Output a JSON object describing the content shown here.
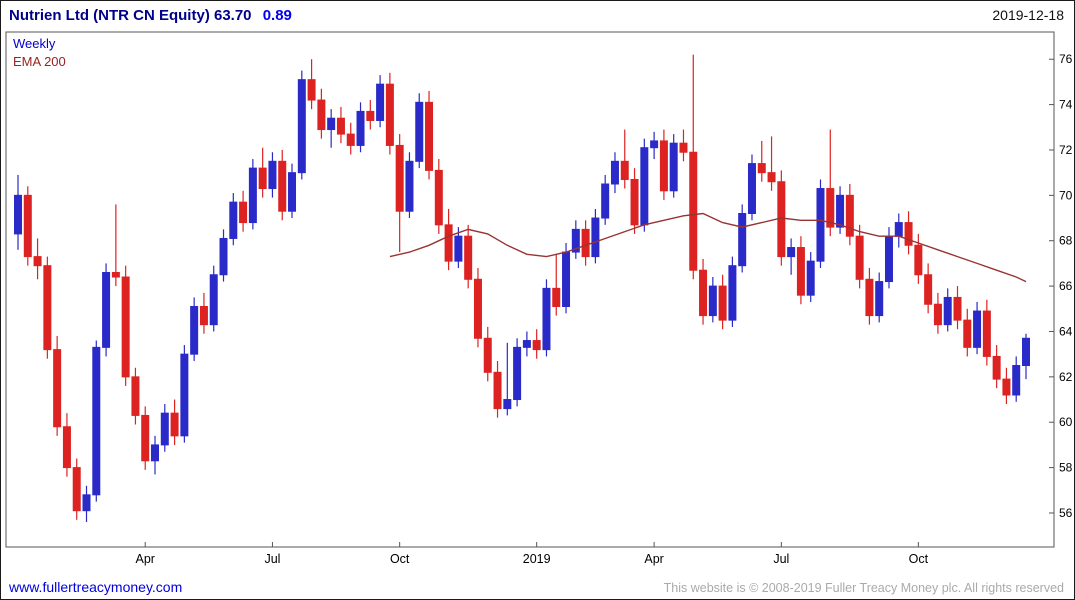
{
  "header": {
    "title": "Nutrien Ltd (NTR CN Equity) 63.70",
    "change": "0.89",
    "date": "2019-12-18"
  },
  "legend": {
    "timeframe": "Weekly",
    "indicator": "EMA 200"
  },
  "footer": {
    "link": "www.fullertreacymoney.com",
    "copyright": "This website is © 2008-2019 Fuller Treacy Money plc. All rights reserved"
  },
  "colors": {
    "up": "#2a2ac8",
    "down": "#dd2222",
    "ema": "#993333",
    "border": "#555555",
    "axis_text": "#000000"
  },
  "chart_data": {
    "type": "candlestick",
    "instrument": "Nutrien Ltd (NTR CN Equity)",
    "last_price": 63.7,
    "change": 0.89,
    "as_of": "2019-12-18",
    "timeframe": "Weekly",
    "overlay": "EMA 200",
    "y_ticks": [
      56,
      58,
      60,
      62,
      64,
      66,
      68,
      70,
      72,
      74,
      76
    ],
    "y_domain": [
      54.5,
      77.2
    ],
    "x_labels": [
      {
        "label": "Apr",
        "index": 13
      },
      {
        "label": "Jul",
        "index": 26
      },
      {
        "label": "Oct",
        "index": 39
      },
      {
        "label": "2019",
        "index": 53
      },
      {
        "label": "Apr",
        "index": 65
      },
      {
        "label": "Jul",
        "index": 78
      },
      {
        "label": "Oct",
        "index": 92
      }
    ],
    "candles": [
      [
        68.3,
        70.9,
        67.6,
        70.0
      ],
      [
        70.0,
        70.4,
        66.9,
        67.3
      ],
      [
        67.3,
        68.1,
        66.3,
        66.9
      ],
      [
        66.9,
        67.3,
        62.8,
        63.2
      ],
      [
        63.2,
        63.8,
        59.4,
        59.8
      ],
      [
        59.8,
        60.4,
        57.6,
        58.0
      ],
      [
        58.0,
        58.4,
        55.7,
        56.1
      ],
      [
        56.1,
        57.2,
        55.6,
        56.8
      ],
      [
        56.8,
        63.6,
        56.5,
        63.3
      ],
      [
        63.3,
        67.0,
        62.9,
        66.6
      ],
      [
        66.6,
        69.6,
        66.0,
        66.4
      ],
      [
        66.4,
        66.9,
        61.6,
        62.0
      ],
      [
        62.0,
        62.4,
        59.9,
        60.3
      ],
      [
        60.3,
        60.7,
        57.9,
        58.3
      ],
      [
        58.3,
        59.4,
        57.7,
        59.0
      ],
      [
        59.0,
        60.8,
        58.7,
        60.4
      ],
      [
        60.4,
        61.0,
        59.0,
        59.4
      ],
      [
        59.4,
        63.4,
        59.1,
        63.0
      ],
      [
        63.0,
        65.5,
        62.7,
        65.1
      ],
      [
        65.1,
        65.7,
        63.9,
        64.3
      ],
      [
        64.3,
        66.9,
        64.0,
        66.5
      ],
      [
        66.5,
        68.5,
        66.2,
        68.1
      ],
      [
        68.1,
        70.1,
        67.8,
        69.7
      ],
      [
        69.7,
        70.2,
        68.4,
        68.8
      ],
      [
        68.8,
        71.6,
        68.5,
        71.2
      ],
      [
        71.2,
        72.1,
        69.9,
        70.3
      ],
      [
        70.3,
        71.9,
        69.9,
        71.5
      ],
      [
        71.5,
        72.0,
        68.9,
        69.3
      ],
      [
        69.3,
        71.4,
        69.0,
        71.0
      ],
      [
        71.0,
        75.5,
        70.7,
        75.1
      ],
      [
        75.1,
        76.0,
        73.8,
        74.2
      ],
      [
        74.2,
        74.7,
        72.5,
        72.9
      ],
      [
        72.9,
        73.8,
        72.1,
        73.4
      ],
      [
        73.4,
        73.9,
        72.3,
        72.7
      ],
      [
        72.7,
        73.2,
        71.8,
        72.2
      ],
      [
        72.2,
        74.1,
        71.9,
        73.7
      ],
      [
        73.7,
        74.2,
        72.9,
        73.3
      ],
      [
        73.3,
        75.3,
        73.0,
        74.9
      ],
      [
        74.9,
        75.4,
        71.8,
        72.2
      ],
      [
        72.2,
        72.7,
        67.5,
        69.3
      ],
      [
        69.3,
        71.9,
        69.0,
        71.5
      ],
      [
        71.5,
        74.5,
        71.2,
        74.1
      ],
      [
        74.1,
        74.6,
        70.7,
        71.1
      ],
      [
        71.1,
        71.6,
        68.3,
        68.7
      ],
      [
        68.7,
        69.4,
        66.7,
        67.1
      ],
      [
        67.1,
        68.6,
        66.8,
        68.2
      ],
      [
        68.2,
        68.7,
        65.9,
        66.3
      ],
      [
        66.3,
        66.8,
        63.3,
        63.7
      ],
      [
        63.7,
        64.2,
        61.8,
        62.2
      ],
      [
        62.2,
        62.7,
        60.2,
        60.6
      ],
      [
        60.6,
        63.5,
        60.3,
        61.0
      ],
      [
        61.0,
        63.7,
        60.7,
        63.3
      ],
      [
        63.3,
        64.0,
        62.9,
        63.6
      ],
      [
        63.6,
        64.1,
        62.8,
        63.2
      ],
      [
        63.2,
        66.3,
        62.9,
        65.9
      ],
      [
        65.9,
        67.4,
        64.7,
        65.1
      ],
      [
        65.1,
        67.9,
        64.8,
        67.5
      ],
      [
        67.5,
        68.9,
        67.2,
        68.5
      ],
      [
        68.5,
        68.9,
        66.9,
        67.3
      ],
      [
        67.3,
        69.4,
        67.0,
        69.0
      ],
      [
        69.0,
        70.9,
        68.7,
        70.5
      ],
      [
        70.5,
        71.9,
        70.1,
        71.5
      ],
      [
        71.5,
        72.9,
        70.3,
        70.7
      ],
      [
        70.7,
        71.2,
        68.3,
        68.7
      ],
      [
        68.7,
        72.5,
        68.4,
        72.1
      ],
      [
        72.1,
        72.8,
        71.6,
        72.4
      ],
      [
        72.4,
        72.9,
        69.8,
        70.2
      ],
      [
        70.2,
        72.7,
        69.9,
        72.3
      ],
      [
        72.3,
        72.9,
        71.5,
        71.9
      ],
      [
        71.9,
        76.2,
        66.3,
        66.7
      ],
      [
        66.7,
        67.2,
        64.3,
        64.7
      ],
      [
        64.7,
        66.4,
        64.4,
        66.0
      ],
      [
        66.0,
        66.5,
        64.1,
        64.5
      ],
      [
        64.5,
        67.3,
        64.2,
        66.9
      ],
      [
        66.9,
        69.6,
        66.6,
        69.2
      ],
      [
        69.2,
        71.8,
        68.9,
        71.4
      ],
      [
        71.4,
        72.4,
        70.6,
        71.0
      ],
      [
        71.0,
        72.6,
        70.2,
        70.6
      ],
      [
        70.6,
        71.1,
        66.9,
        67.3
      ],
      [
        67.3,
        68.1,
        66.5,
        67.7
      ],
      [
        67.7,
        68.2,
        65.2,
        65.6
      ],
      [
        65.6,
        67.5,
        65.3,
        67.1
      ],
      [
        67.1,
        70.7,
        66.8,
        70.3
      ],
      [
        70.3,
        72.9,
        68.2,
        68.6
      ],
      [
        68.6,
        70.4,
        68.3,
        70.0
      ],
      [
        70.0,
        70.5,
        67.8,
        68.2
      ],
      [
        68.2,
        68.7,
        65.9,
        66.3
      ],
      [
        66.3,
        66.8,
        64.3,
        64.7
      ],
      [
        64.7,
        66.6,
        64.4,
        66.2
      ],
      [
        66.2,
        68.6,
        65.9,
        68.2
      ],
      [
        68.2,
        69.2,
        67.7,
        68.8
      ],
      [
        68.8,
        69.3,
        67.4,
        67.8
      ],
      [
        67.8,
        68.3,
        66.1,
        66.5
      ],
      [
        66.5,
        67.0,
        64.8,
        65.2
      ],
      [
        65.2,
        65.7,
        63.9,
        64.3
      ],
      [
        64.3,
        65.9,
        64.0,
        65.5
      ],
      [
        65.5,
        66.0,
        64.1,
        64.5
      ],
      [
        64.5,
        65.0,
        62.9,
        63.3
      ],
      [
        63.3,
        65.3,
        63.0,
        64.9
      ],
      [
        64.9,
        65.4,
        62.5,
        62.9
      ],
      [
        62.9,
        63.4,
        61.5,
        61.9
      ],
      [
        61.9,
        62.4,
        60.8,
        61.2
      ],
      [
        61.2,
        62.9,
        60.9,
        62.5
      ],
      [
        62.5,
        63.9,
        61.9,
        63.7
      ]
    ],
    "ema": [
      [
        38,
        67.3
      ],
      [
        40,
        67.5
      ],
      [
        42,
        67.8
      ],
      [
        44,
        68.2
      ],
      [
        46,
        68.5
      ],
      [
        48,
        68.3
      ],
      [
        50,
        67.8
      ],
      [
        52,
        67.4
      ],
      [
        54,
        67.3
      ],
      [
        56,
        67.5
      ],
      [
        58,
        67.8
      ],
      [
        60,
        68.1
      ],
      [
        62,
        68.4
      ],
      [
        64,
        68.7
      ],
      [
        66,
        68.9
      ],
      [
        68,
        69.1
      ],
      [
        70,
        69.2
      ],
      [
        72,
        68.8
      ],
      [
        74,
        68.6
      ],
      [
        76,
        68.8
      ],
      [
        78,
        69.0
      ],
      [
        80,
        68.9
      ],
      [
        82,
        68.9
      ],
      [
        84,
        68.7
      ],
      [
        86,
        68.4
      ],
      [
        88,
        68.2
      ],
      [
        90,
        68.2
      ],
      [
        92,
        67.9
      ],
      [
        94,
        67.6
      ],
      [
        96,
        67.3
      ],
      [
        98,
        67.0
      ],
      [
        100,
        66.7
      ],
      [
        102,
        66.4
      ],
      [
        103,
        66.2
      ]
    ]
  }
}
